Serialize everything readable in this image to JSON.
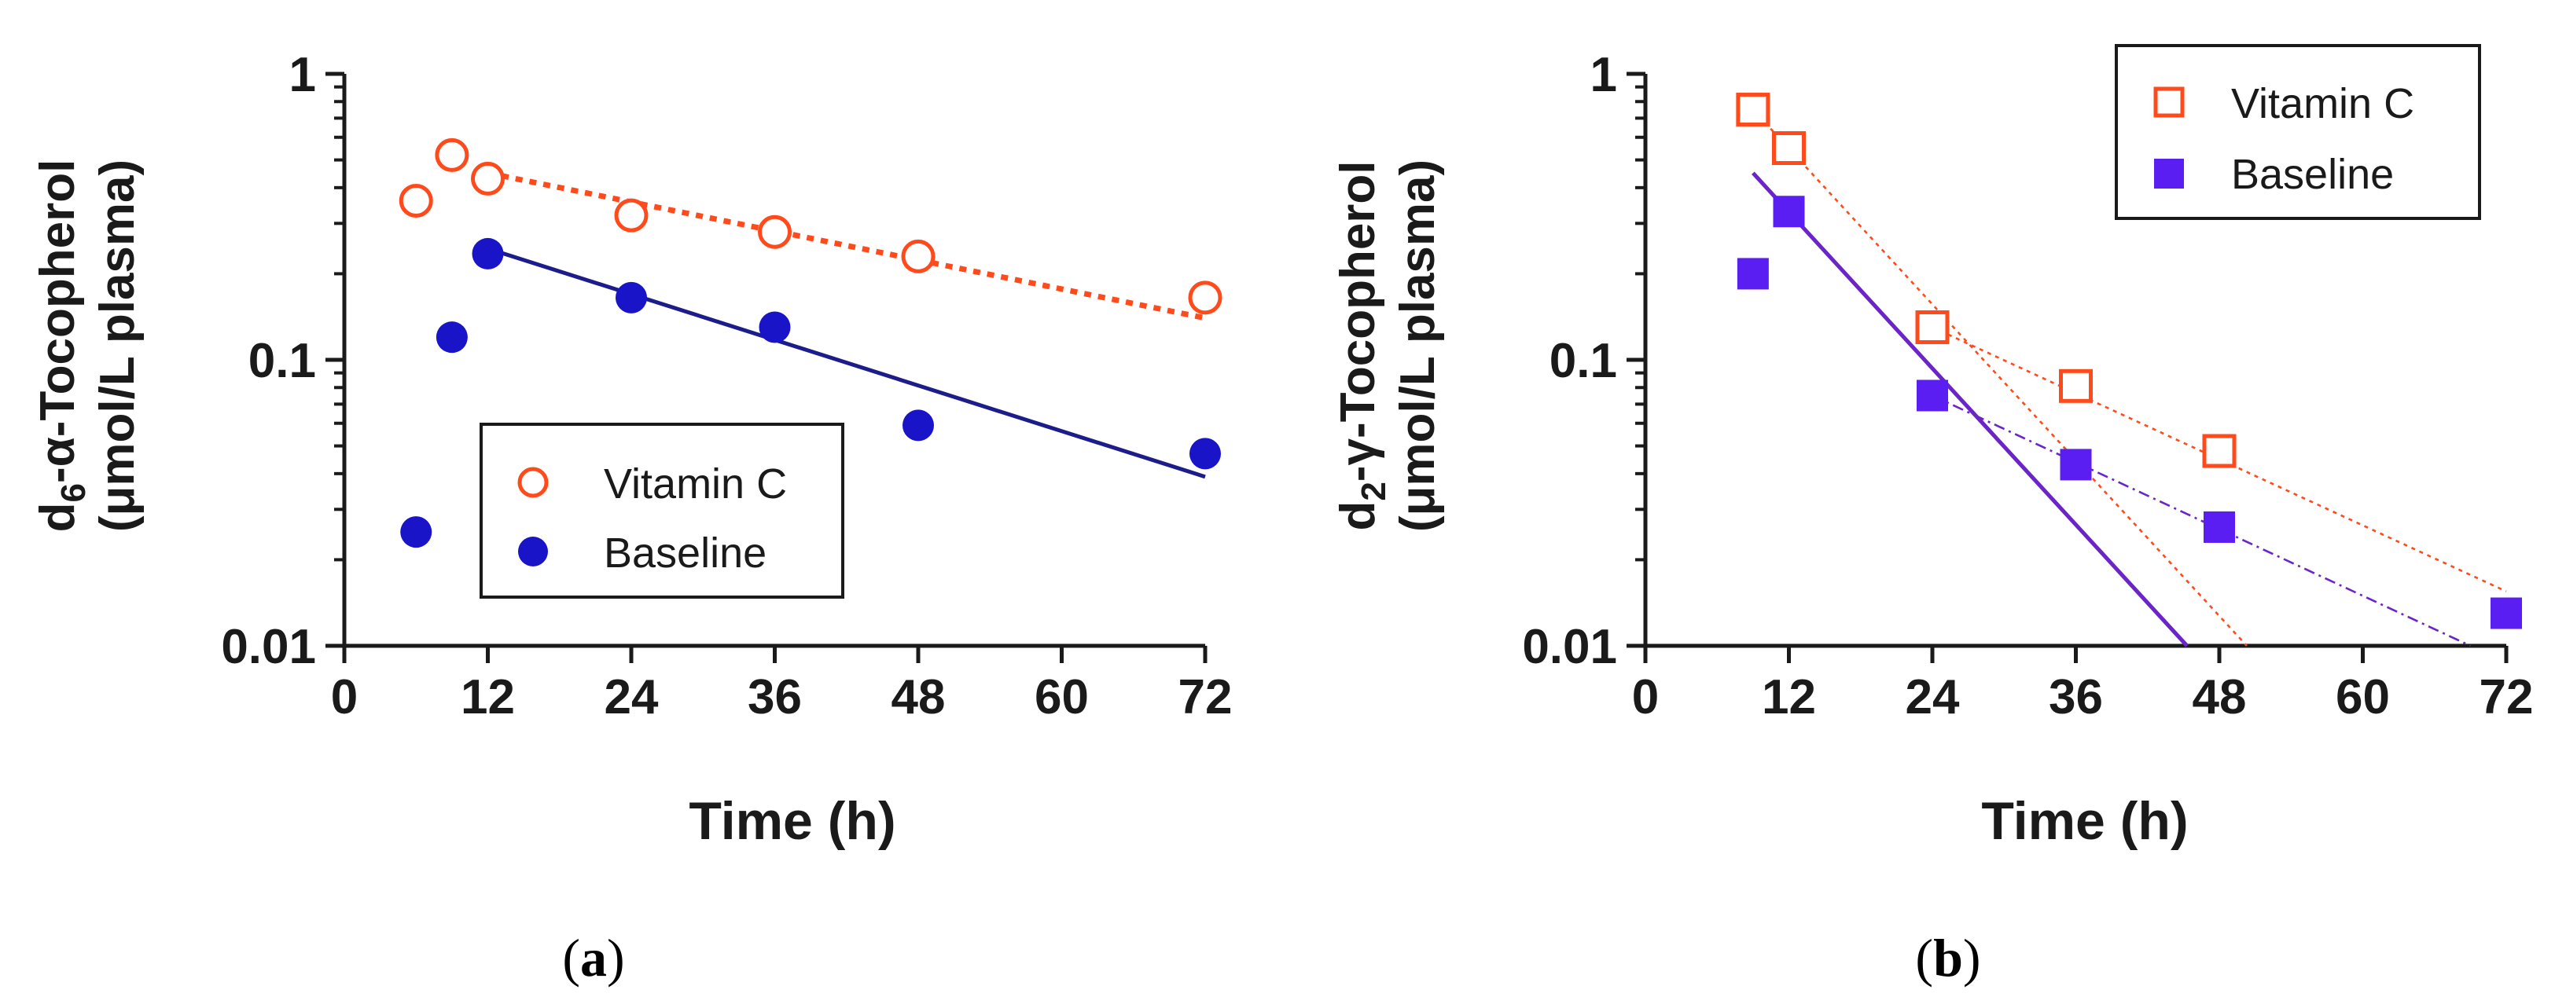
{
  "colors": {
    "vitamin_c": "#ff4a1c",
    "baseline_a": "#1a14c8",
    "baseline_a_line": "#1c1c8a",
    "baseline_b": "#5a1ef2",
    "baseline_b_line": "#6a24c8",
    "axis": "#1a1a1a"
  },
  "chart_data": [
    {
      "type": "scatter",
      "scale": "log-y",
      "panel_label": "a",
      "ylabel_main": "-α-Tocopherol",
      "ylabel_prefix": "d",
      "ylabel_sub": "6",
      "ylabel_units": "(μmol/L plasma)",
      "xlabel": "Time (h)",
      "xlim": [
        0,
        72
      ],
      "ylim": [
        0.01,
        1
      ],
      "xticks": [
        0,
        12,
        24,
        36,
        48,
        60,
        72
      ],
      "yticks": [
        {
          "value": 0.01,
          "label": "0.01"
        },
        {
          "value": 0.1,
          "label": "0.1"
        },
        {
          "value": 1,
          "label": "1"
        }
      ],
      "legend_position": "bottom-left",
      "series": [
        {
          "name": "Vitamin C",
          "marker": "circle-open",
          "x": [
            6,
            9,
            12,
            24,
            36,
            48,
            72
          ],
          "y": [
            0.36,
            0.52,
            0.43,
            0.32,
            0.28,
            0.23,
            0.165
          ],
          "fit": {
            "style": "dotted",
            "x": [
              12,
              72
            ],
            "y": [
              0.45,
              0.14
            ]
          }
        },
        {
          "name": "Baseline",
          "marker": "circle-filled",
          "x": [
            6,
            9,
            12,
            24,
            36,
            48,
            72
          ],
          "y": [
            0.025,
            0.12,
            0.235,
            0.165,
            0.13,
            0.059,
            0.047
          ],
          "fit": {
            "style": "solid",
            "x": [
              12,
              72
            ],
            "y": [
              0.245,
              0.039
            ]
          }
        }
      ]
    },
    {
      "type": "scatter",
      "scale": "log-y",
      "panel_label": "b",
      "ylabel_main": "-γ-Tocopherol",
      "ylabel_prefix": "d",
      "ylabel_sub": "2",
      "ylabel_units": "(μmol/L plasma)",
      "xlabel": "Time (h)",
      "xlim": [
        0,
        72
      ],
      "ylim": [
        0.01,
        1
      ],
      "xticks": [
        0,
        12,
        24,
        36,
        48,
        60,
        72
      ],
      "yticks": [
        {
          "value": 0.01,
          "label": "0.01"
        },
        {
          "value": 0.1,
          "label": "0.1"
        },
        {
          "value": 1,
          "label": "1"
        }
      ],
      "legend_position": "top-right",
      "series": [
        {
          "name": "Vitamin C",
          "marker": "square-open",
          "x": [
            9,
            12,
            24,
            36,
            48
          ],
          "y": [
            0.75,
            0.55,
            0.13,
            0.081,
            0.048
          ],
          "fits": [
            {
              "style": "dotted-thin",
              "x": [
                9,
                50.3
              ],
              "y": [
                0.75,
                0.01
              ]
            },
            {
              "style": "dotted-thin",
              "x": [
                24,
                72
              ],
              "y": [
                0.13,
                0.0155
              ]
            }
          ]
        },
        {
          "name": "Baseline",
          "marker": "square-filled",
          "x": [
            9,
            12,
            24,
            36,
            48,
            72
          ],
          "y": [
            0.2,
            0.33,
            0.075,
            0.043,
            0.026,
            0.013
          ],
          "fits": [
            {
              "style": "solid",
              "x": [
                9,
                45.3
              ],
              "y": [
                0.45,
                0.01
              ]
            },
            {
              "style": "dashdot-thin",
              "x": [
                24,
                69
              ],
              "y": [
                0.075,
                0.01
              ]
            }
          ]
        }
      ]
    }
  ]
}
